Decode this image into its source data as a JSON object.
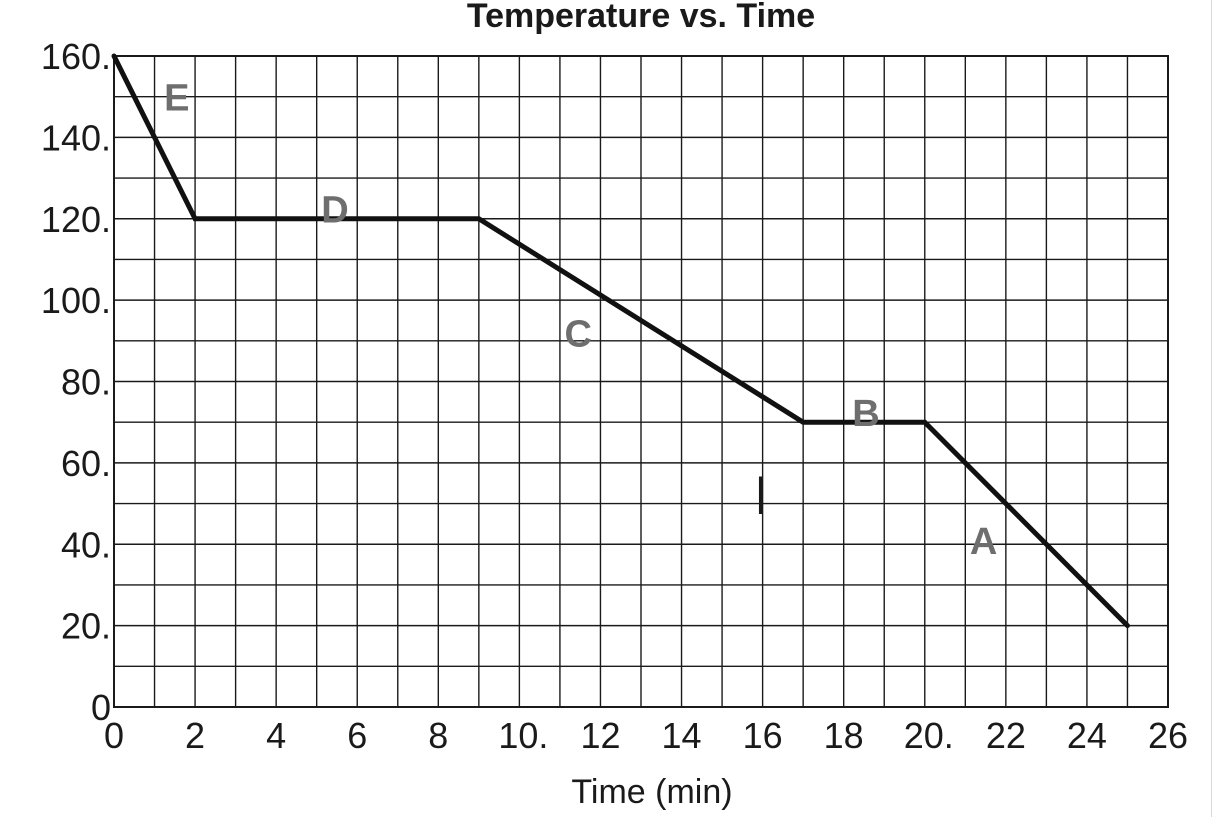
{
  "chart_data": {
    "type": "line",
    "title": "Temperature vs. Time",
    "xlabel": "Time (min)",
    "ylabel": "",
    "xlim": [
      0,
      26
    ],
    "ylim": [
      0,
      160
    ],
    "grid": true,
    "x_tick_labels": [
      "0",
      "2",
      "4",
      "6",
      "8",
      "10.",
      "12",
      "14",
      "16",
      "18",
      "20.",
      "22",
      "24",
      "26"
    ],
    "x_tick_values": [
      0,
      2,
      4,
      6,
      8,
      10,
      12,
      14,
      16,
      18,
      20,
      22,
      24,
      26
    ],
    "y_tick_labels": [
      "0",
      "20.",
      "40.",
      "60.",
      "80.",
      "100.",
      "120.",
      "140.",
      "160."
    ],
    "y_tick_values": [
      0,
      20,
      40,
      60,
      80,
      100,
      120,
      140,
      160
    ],
    "x_minor_step": 1,
    "y_minor_step": 10,
    "series": [
      {
        "x": [
          0,
          2,
          9,
          17,
          20,
          25
        ],
        "y": [
          160,
          120,
          120,
          70,
          70,
          20
        ]
      }
    ],
    "segment_labels": [
      {
        "text": "E",
        "x": 1.55,
        "y": 150
      },
      {
        "text": "D",
        "x": 5.45,
        "y": 122.5
      },
      {
        "text": "C",
        "x": 11.45,
        "y": 92
      },
      {
        "text": "B",
        "x": 18.55,
        "y": 72.5
      },
      {
        "text": "A",
        "x": 21.45,
        "y": 41
      },
      {
        "text": "|",
        "x": 15.95,
        "y": 53
      }
    ]
  }
}
